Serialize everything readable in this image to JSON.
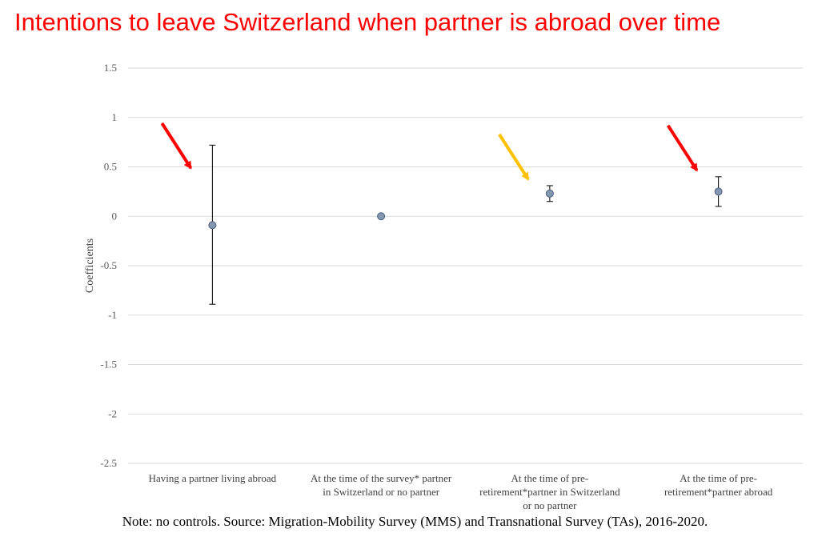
{
  "slide": {
    "title": "Intentions to leave Switzerland when partner is abroad over time",
    "note": "Note: no controls. Source: Migration-Mobility Survey (MMS) and Transnational Survey (TAs), 2016-2020."
  },
  "chart_data": {
    "type": "scatter",
    "title": "",
    "xlabel": "",
    "ylabel": "Coefficients",
    "ylim": [
      -2.5,
      1.5
    ],
    "yticks": [
      1.5,
      1,
      0.5,
      0,
      -0.5,
      -1,
      -1.5,
      -2,
      -2.5
    ],
    "ytick_labels": [
      "1.5",
      "1",
      "0.5",
      "0",
      "-0.5",
      "-1",
      "-1.5",
      "-2",
      "-2.5"
    ],
    "grid": true,
    "legend": "none",
    "categories": [
      [
        "Having a partner living abroad"
      ],
      [
        "At the time of the survey* partner",
        "in Switzerland or no partner"
      ],
      [
        "At the time of pre-",
        "retirement*partner in Switzerland",
        "or no partner"
      ],
      [
        "At the time of pre-",
        "retirement*partner abroad"
      ]
    ],
    "series": [
      {
        "values": [
          -0.09,
          0.0,
          0.23,
          0.25
        ],
        "error_low": [
          -0.89,
          null,
          0.15,
          0.1
        ],
        "error_high": [
          0.72,
          null,
          0.31,
          0.4
        ]
      }
    ],
    "annotations": [
      {
        "type": "arrow",
        "category_index": 0,
        "color": "#ff0000"
      },
      {
        "type": "arrow",
        "category_index": 2,
        "color": "#ffc000"
      },
      {
        "type": "arrow",
        "category_index": 3,
        "color": "#ff0000"
      }
    ],
    "colors": {
      "marker_fill": "#8497b0",
      "marker_stroke": "#4a5d80",
      "gridline": "#d9d9d9",
      "error_bar": "#000000"
    }
  }
}
